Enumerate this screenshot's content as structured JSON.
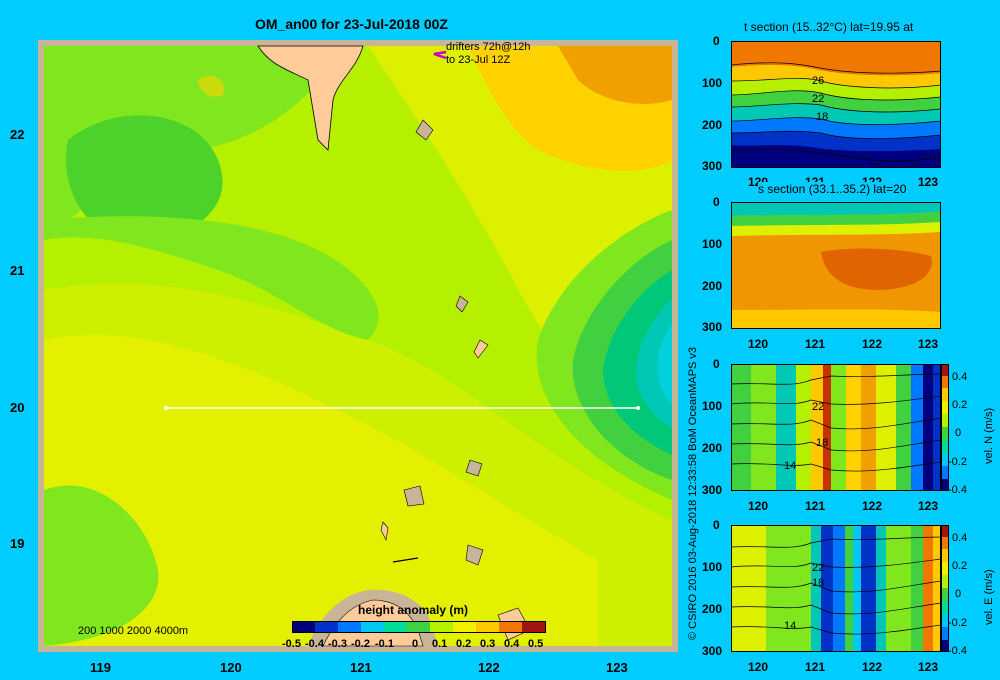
{
  "main_map": {
    "title": "OM_an00 for 23-Jul-2018 00Z",
    "drifters_line1": "drifters 72h@12h",
    "drifters_line2": "to 23-Jul 12Z",
    "lat_ticks": [
      "22",
      "21",
      "20",
      "19"
    ],
    "lon_ticks": [
      "119",
      "120",
      "121",
      "122",
      "123"
    ],
    "depth_legend": "200  1000  2000  4000m",
    "colorbar_title": "height anomaly  (m)",
    "colorbar_ticks": [
      "-0.5",
      "-0.4",
      "-0.3",
      "-0.2",
      "-0.1",
      "0",
      "0.1",
      "0.2",
      "0.3",
      "0.4",
      "0.5"
    ]
  },
  "credit": "© CSIRO 2016   03-Aug-2018 12:33:58 BoM OceanMAPS v3",
  "panels": [
    {
      "title": "t section (15..32°C) lat=19.95 at",
      "depth_ticks": [
        "0",
        "100",
        "200",
        "300"
      ],
      "lon_ticks": [
        "120",
        "121",
        "122",
        "123"
      ],
      "contour_labels": [
        "26",
        "22",
        "18"
      ]
    },
    {
      "title": "s section (33.1..35.2) lat=20",
      "depth_ticks": [
        "0",
        "100",
        "200",
        "300"
      ],
      "lon_ticks": [
        "120",
        "121",
        "122",
        "123"
      ],
      "contour_labels": []
    },
    {
      "title": "",
      "depth_ticks": [
        "0",
        "100",
        "200",
        "300"
      ],
      "lon_ticks": [
        "120",
        "121",
        "122",
        "123"
      ],
      "contour_labels": [
        "22",
        "18",
        "14"
      ],
      "colorbar_label": "vel. N (m/s)",
      "colorbar_ticks": [
        "0.4",
        "0.2",
        "0",
        "-0.2",
        "-0.4"
      ]
    },
    {
      "title": "",
      "depth_ticks": [
        "0",
        "100",
        "200",
        "300"
      ],
      "lon_ticks": [
        "120",
        "121",
        "122",
        "123"
      ],
      "contour_labels": [
        "22",
        "18",
        "14"
      ],
      "colorbar_label": "vel. E (m/s)",
      "colorbar_ticks": [
        "0.4",
        "0.2",
        "0",
        "-0.2",
        "-0.4"
      ]
    }
  ],
  "colors": {
    "background": "#00ccff",
    "land": "#ffcc99",
    "shelf": "#c8b496",
    "transect": "#ffffff",
    "drifter": "#cc00cc"
  }
}
